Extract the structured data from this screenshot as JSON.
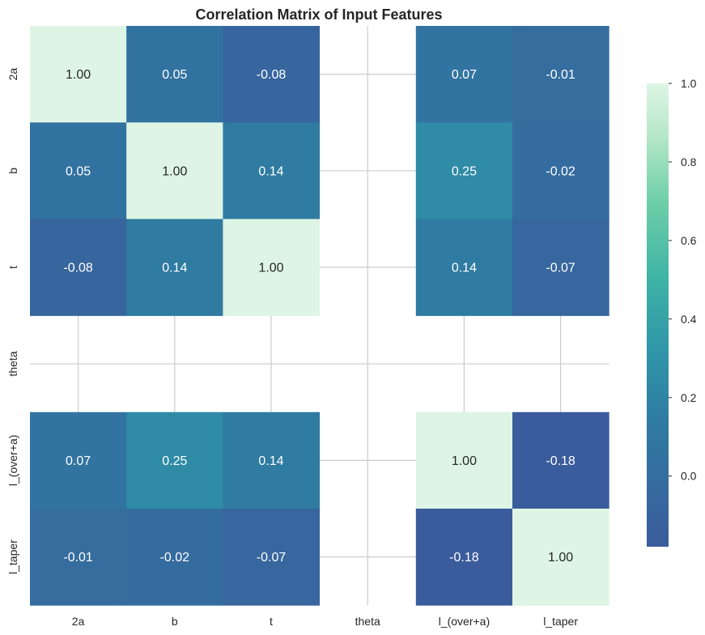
{
  "chart_data": {
    "type": "heatmap",
    "title": "Correlation Matrix of Input Features",
    "xlabel": "",
    "ylabel": "",
    "x_labels": [
      "2a",
      "b",
      "t",
      "theta",
      "l_(over+a)",
      "l_taper"
    ],
    "y_labels": [
      "2a",
      "b",
      "t",
      "theta",
      "l_(over+a)",
      "l_taper"
    ],
    "matrix": [
      [
        1.0,
        0.05,
        -0.08,
        null,
        0.07,
        -0.01
      ],
      [
        0.05,
        1.0,
        0.14,
        null,
        0.25,
        -0.02
      ],
      [
        -0.08,
        0.14,
        1.0,
        null,
        0.14,
        -0.07
      ],
      [
        null,
        null,
        null,
        null,
        null,
        null
      ],
      [
        0.07,
        0.25,
        0.14,
        null,
        1.0,
        -0.18
      ],
      [
        -0.01,
        -0.02,
        -0.07,
        null,
        -0.18,
        1.0
      ]
    ],
    "value_format": "0.00",
    "colormap": "mako",
    "colorbar": {
      "vmin": -0.18,
      "vmax": 1.0,
      "ticks": [
        0.0,
        0.2,
        0.4,
        0.6,
        0.8,
        1.0
      ],
      "tick_labels": [
        "0.0",
        "0.2",
        "0.4",
        "0.6",
        "0.8",
        "1.0"
      ]
    },
    "grid": true
  }
}
